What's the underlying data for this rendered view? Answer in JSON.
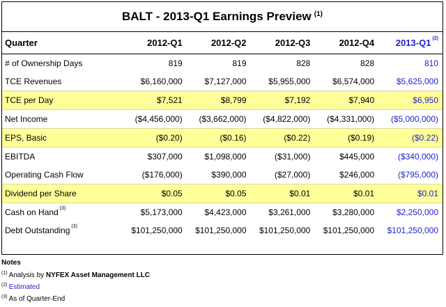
{
  "title": "BALT - 2013-Q1 Earnings Preview",
  "title_note": "(1)",
  "header": {
    "label": "Quarter",
    "cols": [
      "2012-Q1",
      "2012-Q2",
      "2012-Q3",
      "2012-Q4",
      "2013-Q1"
    ],
    "last_note": "(2)"
  },
  "rows": [
    {
      "label": "# of Ownership Days",
      "note": "",
      "values": [
        "819",
        "819",
        "828",
        "828",
        "810"
      ]
    },
    {
      "label": "TCE Revenues",
      "note": "",
      "values": [
        "$6,160,000",
        "$7,127,000",
        "$5,955,000",
        "$6,574,000",
        "$5,625,000"
      ]
    },
    {
      "label": "TCE per Day",
      "note": "",
      "values": [
        "$7,521",
        "$8,799",
        "$7,192",
        "$7,940",
        "$6,950"
      ]
    },
    {
      "label": "Net Income",
      "note": "",
      "values": [
        "($4,456,000)",
        "($3,662,000)",
        "($4,822,000)",
        "($4,331,000)",
        "($5,000,000)"
      ]
    },
    {
      "label": "EPS, Basic",
      "note": "",
      "values": [
        "($0.20)",
        "($0.16)",
        "($0.22)",
        "($0.19)",
        "($0.22)"
      ]
    },
    {
      "label": "EBITDA",
      "note": "",
      "values": [
        "$307,000",
        "$1,098,000",
        "($31,000)",
        "$445,000",
        "($340,000)"
      ]
    },
    {
      "label": "Operating Cash Flow",
      "note": "",
      "values": [
        "($176,000)",
        "$390,000",
        "($27,000)",
        "$246,000",
        "($795,000)"
      ]
    },
    {
      "label": "Dividend per Share",
      "note": "",
      "values": [
        "$0.05",
        "$0.05",
        "$0.01",
        "$0.01",
        "$0.01"
      ]
    },
    {
      "label": "Cash on Hand",
      "note": "(3)",
      "values": [
        "$5,173,000",
        "$4,423,000",
        "$3,261,000",
        "$3,280,000",
        "$2,250,000"
      ]
    },
    {
      "label": "Debt Outstanding",
      "note": "(3)",
      "values": [
        "$101,250,000",
        "$101,250,000",
        "$101,250,000",
        "$101,250,000",
        "$101,250,000"
      ]
    }
  ],
  "notes": {
    "title": "Notes",
    "items": [
      {
        "num": "(1)",
        "prefix": "Analysis by",
        "bold": "NYFEX Asset Management LLC"
      },
      {
        "num": "(2)",
        "text": "Estimated"
      },
      {
        "num": "(3)",
        "text": "As of Quarter-End"
      }
    ]
  },
  "colors": {
    "highlight": "#ffff99",
    "forecast": "#1f1fcc"
  }
}
